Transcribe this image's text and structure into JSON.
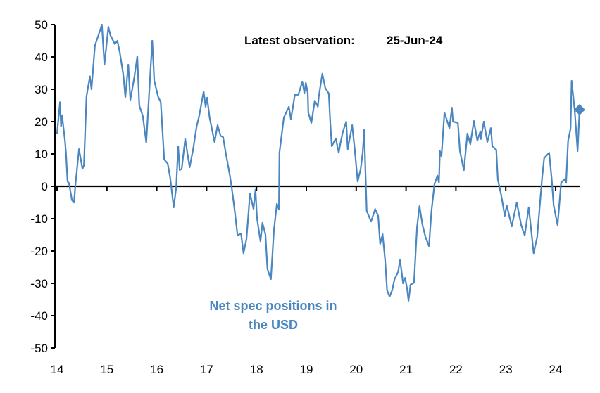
{
  "chart_data": {
    "type": "line",
    "title": "",
    "xlabel": "",
    "ylabel": "",
    "xlim": [
      14,
      24.5
    ],
    "ylim": [
      -50,
      50
    ],
    "grid": false,
    "x_ticks": [
      "14",
      "15",
      "16",
      "17",
      "18",
      "19",
      "20",
      "21",
      "22",
      "23",
      "24"
    ],
    "y_ticks": [
      "50",
      "40",
      "30",
      "20",
      "10",
      "0",
      "-10",
      "-20",
      "-30",
      "-40",
      "-50"
    ],
    "colors": {
      "line": "#4a86c0",
      "annotation": "#4a86c0",
      "axis": "#000000"
    },
    "annotations": {
      "latest_label": "Latest observation:",
      "latest_date": "25-Jun-24",
      "series_label_line1": "Net spec positions in",
      "series_label_line2": "the USD"
    },
    "latest_marker": {
      "x": 24.48,
      "y": 23.7,
      "shape": "diamond"
    },
    "series": [
      {
        "x": [
          14.0,
          14.06,
          14.08,
          14.1,
          14.16,
          14.18,
          14.21,
          14.24,
          14.3,
          14.34,
          14.37,
          14.44,
          14.51,
          14.54,
          14.59,
          14.66,
          14.69,
          14.76,
          14.83,
          14.9,
          14.95,
          15.03,
          15.07,
          15.16,
          15.21,
          15.26,
          15.33,
          15.37,
          15.43,
          15.47,
          15.55,
          15.61,
          15.65,
          15.72,
          15.79,
          15.91,
          15.95,
          16.03,
          16.08,
          16.15,
          16.22,
          16.27,
          16.34,
          16.39,
          16.43,
          16.46,
          16.5,
          16.57,
          16.66,
          16.73,
          16.8,
          16.85,
          16.94,
          16.98,
          17.01,
          17.06,
          17.16,
          17.22,
          17.28,
          17.33,
          17.39,
          17.46,
          17.5,
          17.56,
          17.62,
          17.69,
          17.74,
          17.8,
          17.87,
          17.94,
          17.98,
          18.01,
          18.08,
          18.12,
          18.18,
          18.22,
          18.29,
          18.35,
          18.41,
          18.45,
          18.46,
          18.55,
          18.65,
          18.69,
          18.77,
          18.84,
          18.92,
          18.96,
          18.99,
          19.03,
          19.04,
          19.1,
          19.17,
          19.23,
          19.25,
          19.32,
          19.38,
          19.45,
          19.48,
          19.51,
          19.59,
          19.65,
          19.68,
          19.73,
          19.8,
          19.83,
          19.92,
          19.97,
          20.03,
          20.09,
          20.13,
          20.16,
          20.21,
          20.3,
          20.38,
          20.44,
          20.48,
          20.53,
          20.58,
          20.62,
          20.67,
          20.72,
          20.77,
          20.84,
          20.88,
          20.94,
          20.98,
          21.02,
          21.05,
          21.09,
          21.16,
          21.22,
          21.27,
          21.33,
          21.39,
          21.46,
          21.51,
          21.57,
          21.63,
          21.66,
          21.68,
          21.71,
          21.77,
          21.87,
          21.92,
          21.94,
          22.04,
          22.08,
          22.16,
          22.23,
          22.29,
          22.36,
          22.43,
          22.49,
          22.5,
          22.56,
          22.63,
          22.7,
          22.73,
          22.81,
          22.84,
          22.91,
          22.98,
          23.02,
          23.12,
          23.22,
          23.31,
          23.38,
          23.46,
          23.51,
          23.56,
          23.63,
          23.73,
          23.77,
          23.87,
          23.92,
          23.96,
          24.04,
          24.11,
          24.18,
          24.21,
          24.25,
          24.3,
          24.32,
          24.38,
          24.44,
          24.48
        ],
        "values": [
          16.3,
          26,
          18.5,
          22,
          14,
          10.4,
          1.5,
          1,
          -4.3,
          -5,
          0.7,
          11.5,
          5.4,
          6.5,
          27.8,
          34,
          30,
          43.5,
          46.7,
          50,
          37.6,
          49.3,
          46.7,
          44,
          45,
          41.3,
          34.3,
          27.6,
          37.6,
          26.7,
          33.7,
          40.2,
          25,
          21.7,
          13.5,
          45,
          32.6,
          27.6,
          26,
          8.3,
          7,
          2.6,
          -6.5,
          -0.4,
          12.4,
          5,
          5.4,
          14.6,
          5.9,
          11.5,
          18.5,
          21.7,
          29.3,
          24.6,
          27.4,
          21.3,
          13.7,
          18.9,
          15.6,
          15.2,
          9.8,
          3.9,
          0,
          -7,
          -15.2,
          -14.6,
          -20.7,
          -16.3,
          -2.2,
          -7,
          -1,
          -9.8,
          -17,
          -11.3,
          -14.8,
          -25.6,
          -28.7,
          -13.5,
          -5.4,
          -7.2,
          10.4,
          21.3,
          24.6,
          20.7,
          28.3,
          28.3,
          32.4,
          28.9,
          32,
          28.7,
          22.8,
          19.6,
          26.5,
          24.6,
          27.8,
          34.8,
          30.4,
          28.7,
          19.6,
          12.4,
          14.8,
          10.4,
          13,
          16.7,
          20,
          11.5,
          18.9,
          11.5,
          1.5,
          5.4,
          10.4,
          17.4,
          -7.6,
          -10.9,
          -7,
          -9.1,
          -17.8,
          -14.8,
          -22.8,
          -32.2,
          -34.1,
          -32.2,
          -28.7,
          -26.5,
          -22.8,
          -30,
          -28.3,
          -31.5,
          -35.4,
          -30.4,
          -29.8,
          -12.6,
          -6.1,
          -12,
          -15.7,
          -18.5,
          -7.6,
          0.7,
          3.3,
          1.1,
          10.9,
          9.3,
          22.8,
          18,
          24.3,
          20,
          19.6,
          10.9,
          5,
          16.3,
          13,
          20.2,
          14.1,
          17,
          14.6,
          20,
          13.7,
          18,
          12.4,
          11.3,
          2.2,
          -2.8,
          -9.1,
          -5.9,
          -12.4,
          -5,
          -12,
          -15.2,
          -6.5,
          -13.5,
          -20.7,
          -15.7,
          2.8,
          8.7,
          10.4,
          2.6,
          -5.9,
          -12,
          1.1,
          2.2,
          1.1,
          14.1,
          17.8,
          32.6,
          23.9,
          10.9,
          23.7
        ]
      }
    ]
  }
}
